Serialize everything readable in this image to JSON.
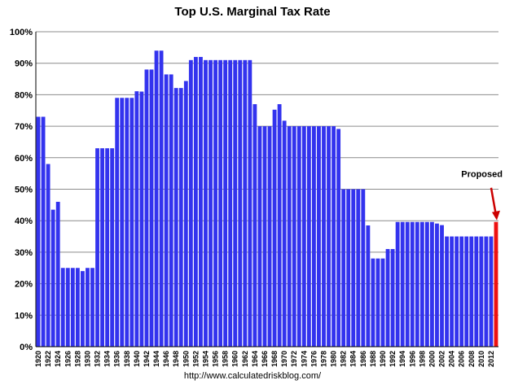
{
  "chart_data": {
    "type": "bar",
    "title": "Top U.S. Marginal Tax Rate",
    "source": "http://www.calculatedriskblog.com/",
    "xlabel": "",
    "ylabel": "",
    "ylim": [
      0,
      100
    ],
    "y_ticks": [
      "0%",
      "10%",
      "20%",
      "30%",
      "40%",
      "50%",
      "60%",
      "70%",
      "80%",
      "90%",
      "100%"
    ],
    "grid": true,
    "legend": "none",
    "bar_color": "#3333ee",
    "highlight_color": "#ee1111",
    "categories": [
      1920,
      1921,
      1922,
      1923,
      1924,
      1925,
      1926,
      1927,
      1928,
      1929,
      1930,
      1931,
      1932,
      1933,
      1934,
      1935,
      1936,
      1937,
      1938,
      1939,
      1940,
      1941,
      1942,
      1943,
      1944,
      1945,
      1946,
      1947,
      1948,
      1949,
      1950,
      1951,
      1952,
      1953,
      1954,
      1955,
      1956,
      1957,
      1958,
      1959,
      1960,
      1961,
      1962,
      1963,
      1964,
      1965,
      1966,
      1967,
      1968,
      1969,
      1970,
      1971,
      1972,
      1973,
      1974,
      1975,
      1976,
      1977,
      1978,
      1979,
      1980,
      1981,
      1982,
      1983,
      1984,
      1985,
      1986,
      1987,
      1988,
      1989,
      1990,
      1991,
      1992,
      1993,
      1994,
      1995,
      1996,
      1997,
      1998,
      1999,
      2000,
      2001,
      2002,
      2003,
      2004,
      2005,
      2006,
      2007,
      2008,
      2009,
      2010,
      2011,
      2012,
      2013
    ],
    "x_tick_labels": [
      "1920",
      "1922",
      "1924",
      "1926",
      "1928",
      "1930",
      "1932",
      "1934",
      "1936",
      "1938",
      "1940",
      "1942",
      "1944",
      "1946",
      "1948",
      "1950",
      "1952",
      "1954",
      "1956",
      "1958",
      "1960",
      "1962",
      "1964",
      "1966",
      "1968",
      "1970",
      "1972",
      "1974",
      "1976",
      "1978",
      "1980",
      "1982",
      "1984",
      "1986",
      "1988",
      "1990",
      "1992",
      "1994",
      "1996",
      "1998",
      "2000",
      "2002",
      "2004",
      "2006",
      "2008",
      "2010",
      "2012"
    ],
    "series": [
      {
        "values": [
          73,
          73,
          58,
          43.5,
          46,
          25,
          25,
          25,
          25,
          24,
          25,
          25,
          63,
          63,
          63,
          63,
          79,
          79,
          79,
          79,
          81.1,
          81,
          88,
          88,
          94,
          94,
          86.45,
          86.45,
          82.13,
          82.13,
          84.36,
          91,
          92,
          92,
          91,
          91,
          91,
          91,
          91,
          91,
          91,
          91,
          91,
          91,
          77,
          70,
          70,
          70,
          75.25,
          77,
          71.75,
          70,
          70,
          70,
          70,
          70,
          70,
          70,
          70,
          70,
          70,
          69.13,
          50,
          50,
          50,
          50,
          50,
          38.5,
          28,
          28,
          28,
          31,
          31,
          39.6,
          39.6,
          39.6,
          39.6,
          39.6,
          39.6,
          39.6,
          39.6,
          39.1,
          38.6,
          35,
          35,
          35,
          35,
          35,
          35,
          35,
          35,
          35,
          35,
          39.6
        ],
        "highlight_index": 93
      }
    ],
    "annotation": {
      "text": "Proposed",
      "target_year": 2013,
      "arrow_color": "#cc0000"
    }
  }
}
